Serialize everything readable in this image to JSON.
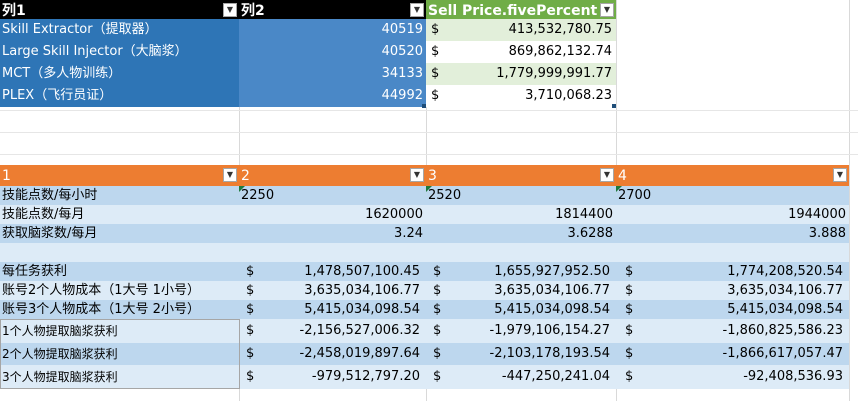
{
  "table1": {
    "headers": [
      "列1",
      "列2",
      "Sell Price.fivePercent"
    ],
    "rows": [
      {
        "name": "Skill Extractor（提取器）",
        "id": "40519",
        "currency": "$",
        "price": "413,532,780.75"
      },
      {
        "name": "Large Skill Injector（大脑浆）",
        "id": "40520",
        "currency": "$",
        "price": "869,862,132.74"
      },
      {
        "name": "MCT（多人物训练）",
        "id": "34133",
        "currency": "$",
        "price": "1,779,999,991.77"
      },
      {
        "name": "PLEX（飞行员证）",
        "id": "44992",
        "currency": "$",
        "price": "3,710,068.23"
      }
    ]
  },
  "table2": {
    "headers": [
      "1",
      "2",
      "3",
      "4"
    ],
    "rows": [
      {
        "label": "技能点数/每小时",
        "v1": "2250",
        "v2": "2520",
        "v3": "2700"
      },
      {
        "label": "技能点数/每月",
        "v1": "1620000",
        "v2": "1814400",
        "v3": "1944000"
      },
      {
        "label": "获取脑浆数/每月",
        "v1": "3.24",
        "v2": "3.6288",
        "v3": "3.888"
      },
      {
        "label": "",
        "v1": "",
        "v2": "",
        "v3": ""
      },
      {
        "label": "每任务获利",
        "v1": "1,478,507,100.45",
        "v2": "1,655,927,952.50",
        "v3": "1,774,208,520.54"
      },
      {
        "label": "账号2个人物成本（1大号 1小号）",
        "v1": "3,635,034,106.77",
        "v2": "3,635,034,106.77",
        "v3": "3,635,034,106.77"
      },
      {
        "label": "账号3个人物成本（1大号 2小号）",
        "v1": "5,415,034,098.54",
        "v2": "5,415,034,098.54",
        "v3": "5,415,034,098.54"
      },
      {
        "label": "1个人物提取脑浆获利",
        "v1": "-2,156,527,006.32",
        "v2": "-1,979,106,154.27",
        "v3": "-1,860,825,586.23"
      },
      {
        "label": "2个人物提取脑浆获利",
        "v1": "-2,458,019,897.64",
        "v2": "-2,103,178,193.54",
        "v3": "-1,866,617,057.47"
      },
      {
        "label": "3个人物提取脑浆获利",
        "v1": "-979,512,797.20",
        "v2": "-447,250,241.04",
        "v3": "-92,408,536.93"
      }
    ],
    "currency": "$"
  }
}
